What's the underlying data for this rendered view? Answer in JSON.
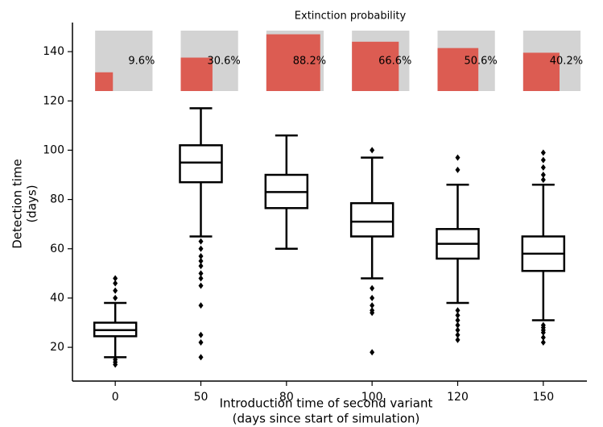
{
  "chart_data": {
    "type": "box",
    "ylabel": [
      "Detection time",
      "(days)"
    ],
    "xlabel": [
      "Introduction time of second variant",
      "(days since start of simulation)"
    ],
    "categories": [
      "0",
      "50",
      "80",
      "100",
      "120",
      "150"
    ],
    "ylim": [
      6.3,
      151.8
    ],
    "yticks": [
      20,
      40,
      60,
      80,
      100,
      120,
      140
    ],
    "color": "#000000",
    "boxes": [
      {
        "low": 16,
        "q1": 24.5,
        "median": 27,
        "q3": 30,
        "high": 38,
        "outliers": [
          13,
          14,
          15,
          40,
          43,
          46,
          48
        ]
      },
      {
        "low": 65,
        "q1": 87,
        "median": 95,
        "q3": 102,
        "high": 117,
        "outliers": [
          63,
          60,
          57,
          55,
          53,
          50,
          48,
          45,
          37,
          25,
          22,
          16
        ]
      },
      {
        "low": 60,
        "q1": 76.5,
        "median": 83,
        "q3": 90,
        "high": 106,
        "outliers": []
      },
      {
        "low": 48,
        "q1": 65,
        "median": 71,
        "q3": 78.5,
        "high": 97,
        "outliers": [
          100,
          44,
          40,
          37,
          35,
          34,
          18
        ]
      },
      {
        "low": 38,
        "q1": 56,
        "median": 62,
        "q3": 68,
        "high": 86,
        "outliers": [
          92,
          97,
          35,
          33,
          31,
          29,
          27,
          25,
          23
        ]
      },
      {
        "low": 31,
        "q1": 51,
        "median": 58,
        "q3": 65,
        "high": 86,
        "outliers": [
          88,
          90,
          93,
          96,
          99,
          29,
          28,
          27,
          26,
          24,
          22
        ]
      }
    ],
    "inset": {
      "title": "Extinction probability",
      "values": [
        9.6,
        30.6,
        88.2,
        66.6,
        50.6,
        40.2
      ],
      "value_labels": [
        "9.6%",
        "30.6%",
        "88.2%",
        "66.6%",
        "50.6%",
        "40.2%"
      ],
      "lim": [
        0,
        100
      ],
      "color": "#dc5c52",
      "background": "#d3d3d3"
    }
  }
}
